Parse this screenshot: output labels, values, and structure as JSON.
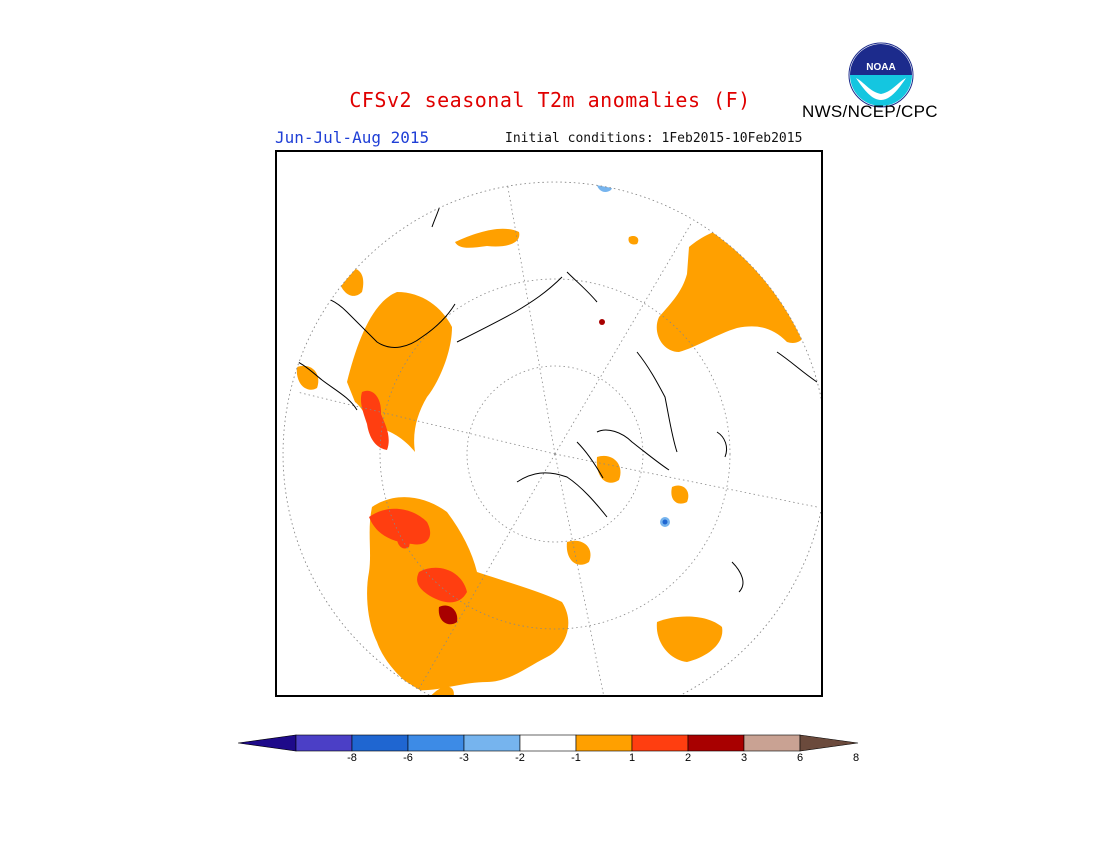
{
  "header": {
    "title": "CFSv2 seasonal T2m anomalies (F)",
    "period": "Jun-Jul-Aug 2015",
    "initial_conditions": "Initial conditions: 1Feb2015-10Feb2015",
    "agency": "NWS/NCEP/CPC",
    "logo_text": "NOAA"
  },
  "colorbar": {
    "labels": [
      "-8",
      "-6",
      "-3",
      "-2",
      "-1",
      "1",
      "2",
      "3",
      "6",
      "8"
    ],
    "colors": [
      "#1e0a8a",
      "#4b3fc6",
      "#1f66d1",
      "#3d8be6",
      "#76b4ee",
      "#ffffff",
      "#ffa000",
      "#ff3e10",
      "#a80000",
      "#c9a293",
      "#6b4a3c"
    ]
  },
  "map": {
    "projection": "north-polar-stereographic",
    "colors": {
      "warm1": "#ffa000",
      "warm2": "#ff3e10",
      "warm3": "#a80000",
      "cool1": "#76b4ee",
      "cool2": "#1f66d1",
      "coast": "#000000",
      "grid": "#888888"
    }
  }
}
